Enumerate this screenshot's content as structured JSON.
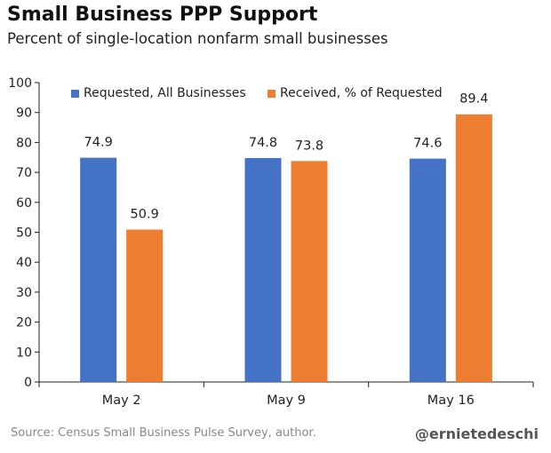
{
  "chart_data": {
    "type": "bar",
    "title": "Small Business PPP Support",
    "subtitle": "Percent of single-location nonfarm small businesses",
    "categories": [
      "May 2",
      "May 9",
      "May 16"
    ],
    "series": [
      {
        "name": "Requested, All Businesses",
        "values": [
          74.9,
          74.8,
          74.6
        ],
        "color": "#4472c4"
      },
      {
        "name": "Received, % of Requested",
        "values": [
          50.9,
          73.8,
          89.4
        ],
        "color": "#ed7d31"
      }
    ],
    "data_labels": [
      [
        "74.9",
        "74.8",
        "74.6"
      ],
      [
        "50.9",
        "73.8",
        "89.4"
      ]
    ],
    "ylim": [
      0,
      100
    ],
    "yticks": [
      0,
      10,
      20,
      30,
      40,
      50,
      60,
      70,
      80,
      90,
      100
    ],
    "grid": false,
    "legend": "top"
  },
  "footer": {
    "source": "Source: Census Small Business Pulse Survey, author.",
    "handle": "@ernietedeschi"
  }
}
